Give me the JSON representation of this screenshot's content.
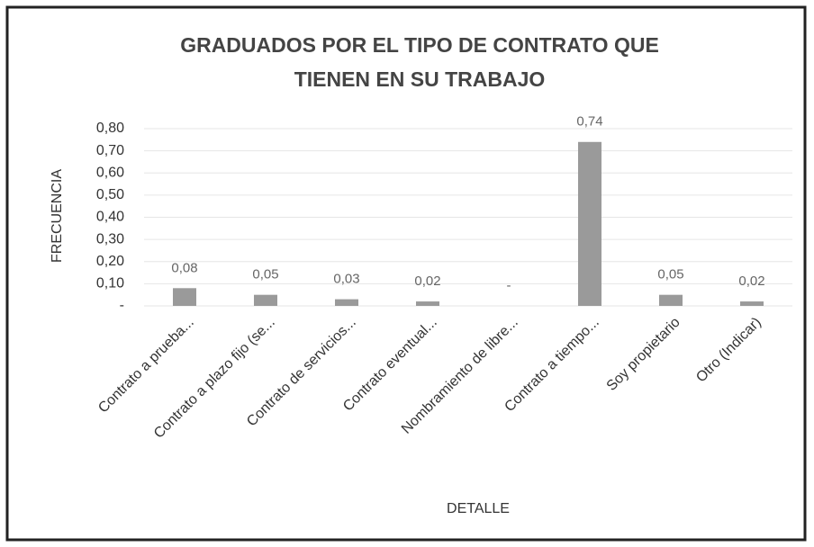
{
  "chart_data": {
    "type": "bar",
    "title": [
      "GRADUADOS POR EL TIPO DE CONTRATO QUE",
      "TIENEN EN SU TRABAJO"
    ],
    "x_label": "DETALLE",
    "y_label": "FRECUENCIA",
    "categories": [
      "Contrato a prueba...",
      "Contrato a plazo fijo (se...",
      "Contrato de servicios...",
      "Contrato eventual...",
      "Nombramiento de libre...",
      "Contrato a tiempo...",
      "Soy propietario",
      "Otro (Indicar)"
    ],
    "values": [
      0.08,
      0.05,
      0.03,
      0.02,
      0,
      0.74,
      0.05,
      0.02
    ],
    "value_labels": [
      "0,08",
      "0,05",
      "0,03",
      "0,02",
      "-",
      "0,74",
      "0,05",
      "0,02"
    ],
    "color": "#9a9a9a",
    "ylim": [
      0,
      0.8
    ],
    "yticks": [
      {
        "value": 0,
        "label": "-"
      },
      {
        "value": 0.1,
        "label": "0,10"
      },
      {
        "value": 0.2,
        "label": "0,20"
      },
      {
        "value": 0.3,
        "label": "0,30"
      },
      {
        "value": 0.4,
        "label": "0,40"
      },
      {
        "value": 0.5,
        "label": "0,50"
      },
      {
        "value": 0.6,
        "label": "0,60"
      },
      {
        "value": 0.7,
        "label": "0,70"
      },
      {
        "value": 0.8,
        "label": "0,80"
      }
    ],
    "grid": true
  }
}
